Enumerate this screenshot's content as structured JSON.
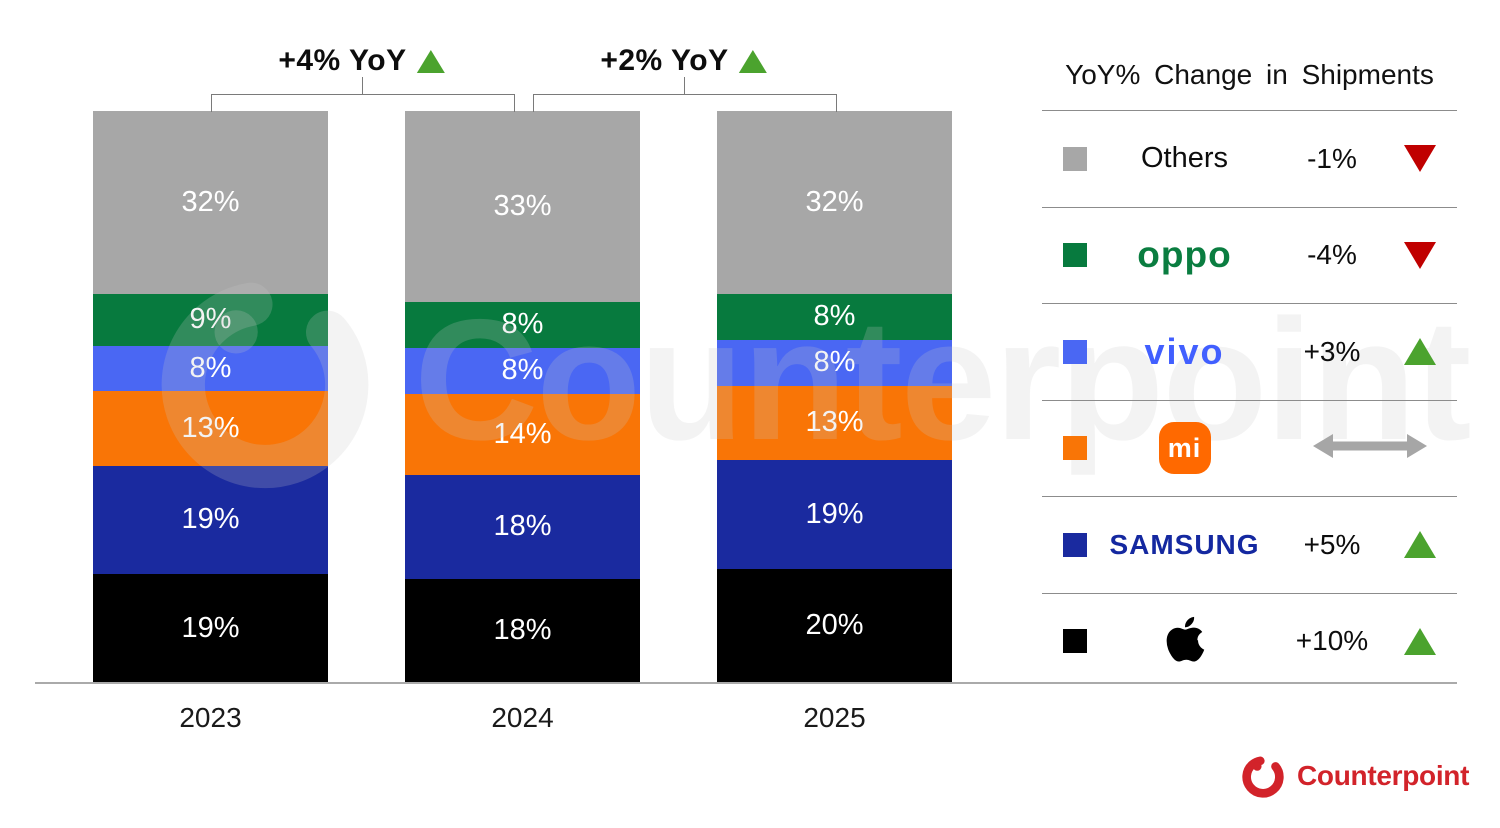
{
  "chart_data": {
    "type": "bar",
    "stacked": true,
    "unit": "%",
    "title": "",
    "categories": [
      "2023",
      "2024",
      "2025"
    ],
    "series": [
      {
        "name": "Apple",
        "color": "#000000",
        "values": [
          19,
          18,
          20
        ]
      },
      {
        "name": "Samsung",
        "color": "#1a2a9f",
        "values": [
          19,
          18,
          19
        ]
      },
      {
        "name": "Xiaomi",
        "color": "#f97506",
        "values": [
          13,
          14,
          13
        ]
      },
      {
        "name": "vivo",
        "color": "#4a67f3",
        "values": [
          8,
          8,
          8
        ]
      },
      {
        "name": "OPPO",
        "color": "#077a3e",
        "values": [
          9,
          8,
          8
        ]
      },
      {
        "name": "Others",
        "color": "#a7a7a7",
        "values": [
          32,
          33,
          32
        ]
      }
    ],
    "stack_order_bottom_to_top": [
      "Apple",
      "Samsung",
      "Xiaomi",
      "vivo",
      "OPPO",
      "Others"
    ],
    "annotations": [
      {
        "label": "+4% YoY",
        "direction": "up",
        "between": [
          "2023",
          "2024"
        ]
      },
      {
        "label": "+2% YoY",
        "direction": "up",
        "between": [
          "2024",
          "2025"
        ]
      }
    ],
    "ylim": [
      0,
      100
    ],
    "grid": false,
    "legend_position": "right"
  },
  "legend": {
    "title": "YoY% Change in Shipments",
    "rows": [
      {
        "brand": "Others",
        "logo_type": "text",
        "logo_text": "Others",
        "change": "-1%",
        "direction": "down",
        "swatch": "#a7a7a7"
      },
      {
        "brand": "OPPO",
        "logo_type": "wordmark-oppo",
        "logo_text": "oppo",
        "change": "-4%",
        "direction": "down",
        "swatch": "#077a3e"
      },
      {
        "brand": "vivo",
        "logo_type": "wordmark-vivo",
        "logo_text": "vivo",
        "change": "+3%",
        "direction": "up",
        "swatch": "#4a67f3"
      },
      {
        "brand": "Xiaomi",
        "logo_type": "mi-icon",
        "logo_text": "mi",
        "change": "",
        "direction": "flat",
        "swatch": "#f97506"
      },
      {
        "brand": "Samsung",
        "logo_type": "wordmark-samsung",
        "logo_text": "SAMSUNG",
        "change": "+5%",
        "direction": "up",
        "swatch": "#1a2a9f"
      },
      {
        "brand": "Apple",
        "logo_type": "apple-icon",
        "logo_text": "",
        "change": "+10%",
        "direction": "up",
        "swatch": "#000000"
      }
    ],
    "colors": {
      "up": "#4ba32e",
      "down": "#c00000",
      "flat": "#a6a6a6"
    }
  },
  "branding": {
    "logo_text": "Counterpoint",
    "color": "#d2232a"
  },
  "watermark": {
    "text": "Counterpoint"
  }
}
